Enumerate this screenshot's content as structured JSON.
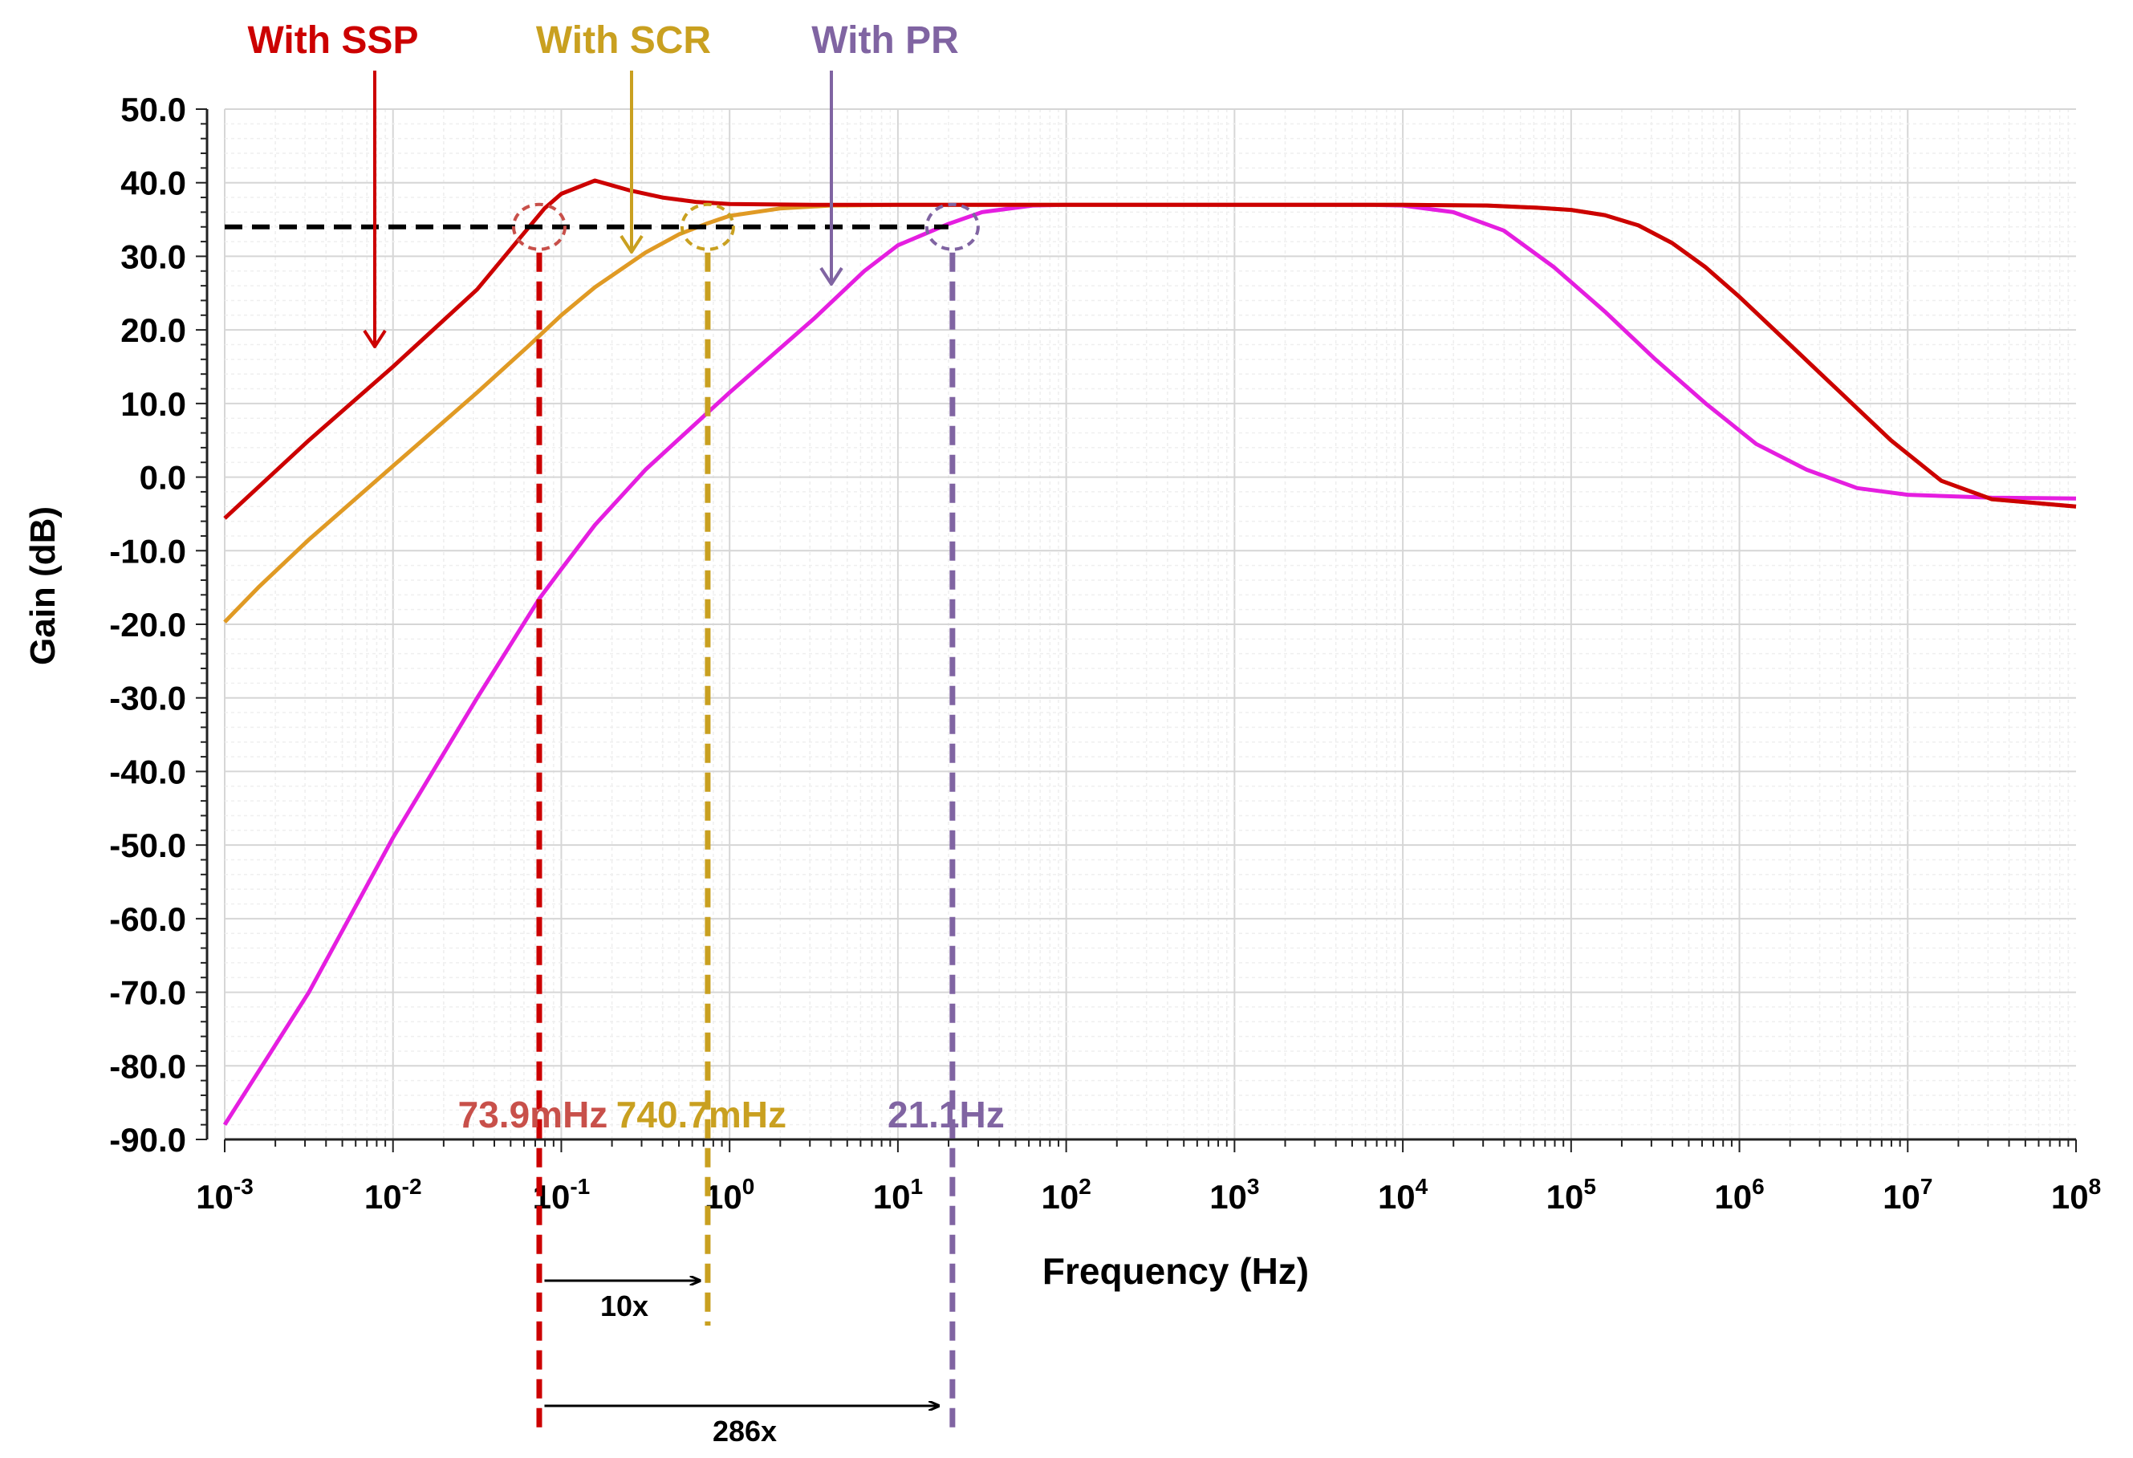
{
  "chart_data": {
    "type": "line",
    "title": "",
    "xlabel": "Frequency (Hz)",
    "ylabel": "Gain (dB)",
    "x_scale": "log10",
    "xlim": [
      0.001,
      100000000
    ],
    "ylim": [
      -90,
      50
    ],
    "grid": true,
    "x_tick_labels": [
      {
        "base": "10",
        "exp": "-3",
        "value": 0.001
      },
      {
        "base": "10",
        "exp": "-2",
        "value": 0.01
      },
      {
        "base": "10",
        "exp": "-1",
        "value": 0.1
      },
      {
        "base": "10",
        "exp": "0",
        "value": 1
      },
      {
        "base": "10",
        "exp": "1",
        "value": 10
      },
      {
        "base": "10",
        "exp": "2",
        "value": 100
      },
      {
        "base": "10",
        "exp": "3",
        "value": 1000
      },
      {
        "base": "10",
        "exp": "4",
        "value": 10000
      },
      {
        "base": "10",
        "exp": "5",
        "value": 100000
      },
      {
        "base": "10",
        "exp": "6",
        "value": 1000000
      },
      {
        "base": "10",
        "exp": "7",
        "value": 10000000
      },
      {
        "base": "10",
        "exp": "8",
        "value": 100000000
      }
    ],
    "y_tick_labels": [
      "50.0",
      "40.0",
      "30.0",
      "20.0",
      "10.0",
      "0.0",
      "-10.0",
      "-20.0",
      "-30.0",
      "-40.0",
      "-50.0",
      "-60.0",
      "-70.0",
      "-80.0",
      "-90.0"
    ],
    "series": [
      {
        "name": "With SSP",
        "color": "#cc0000",
        "points": [
          [
            -3,
            -5.6
          ],
          [
            -2.5,
            5
          ],
          [
            -2,
            15
          ],
          [
            -1.5,
            25.5
          ],
          [
            -1.3,
            31
          ],
          [
            -1.1,
            36.5
          ],
          [
            -1,
            38.5
          ],
          [
            -0.8,
            40.3
          ],
          [
            -0.6,
            39
          ],
          [
            -0.4,
            38
          ],
          [
            -0.2,
            37.4
          ],
          [
            0,
            37.1
          ],
          [
            0.5,
            37
          ],
          [
            1,
            37
          ],
          [
            2,
            37
          ],
          [
            3,
            37
          ],
          [
            4,
            37
          ],
          [
            4.5,
            36.9
          ],
          [
            4.8,
            36.6
          ],
          [
            5,
            36.3
          ],
          [
            5.2,
            35.6
          ],
          [
            5.4,
            34.2
          ],
          [
            5.6,
            31.8
          ],
          [
            5.8,
            28.5
          ],
          [
            6,
            24.5
          ],
          [
            6.3,
            18
          ],
          [
            6.6,
            11.5
          ],
          [
            6.9,
            5
          ],
          [
            7.2,
            -0.5
          ],
          [
            7.5,
            -3
          ],
          [
            8,
            -4
          ]
        ]
      },
      {
        "name": "With SCR",
        "color": "#e09a24",
        "points": [
          [
            -3,
            -19.7
          ],
          [
            -2.8,
            -15
          ],
          [
            -2.5,
            -8.5
          ],
          [
            -2,
            1.5
          ],
          [
            -1.5,
            11.5
          ],
          [
            -1.2,
            17.7
          ],
          [
            -1,
            22
          ],
          [
            -0.8,
            25.8
          ],
          [
            -0.5,
            30.5
          ],
          [
            -0.3,
            33
          ],
          [
            -0.13,
            34.5
          ],
          [
            0,
            35.5
          ],
          [
            0.3,
            36.5
          ],
          [
            0.6,
            36.9
          ],
          [
            1,
            37
          ],
          [
            2,
            37
          ],
          [
            3,
            37
          ],
          [
            4,
            37
          ],
          [
            4.5,
            36.9
          ],
          [
            4.8,
            36.6
          ],
          [
            5,
            36.3
          ],
          [
            5.2,
            35.6
          ],
          [
            5.4,
            34.2
          ],
          [
            5.6,
            31.8
          ],
          [
            5.8,
            28.5
          ],
          [
            6,
            24.5
          ],
          [
            6.3,
            18
          ],
          [
            6.6,
            11.5
          ],
          [
            6.9,
            5
          ],
          [
            7.2,
            -0.5
          ],
          [
            7.5,
            -3
          ],
          [
            8,
            -4
          ]
        ]
      },
      {
        "name": "With PR",
        "color": "#e51ee0",
        "points": [
          [
            -3,
            -88
          ],
          [
            -2.5,
            -70
          ],
          [
            -2,
            -49
          ],
          [
            -1.5,
            -30
          ],
          [
            -1.13,
            -16.5
          ],
          [
            -1,
            -12.5
          ],
          [
            -0.8,
            -6.5
          ],
          [
            -0.5,
            1
          ],
          [
            0,
            11.5
          ],
          [
            0.5,
            21.5
          ],
          [
            0.8,
            28
          ],
          [
            1,
            31.5
          ],
          [
            1.3,
            34.4
          ],
          [
            1.5,
            36
          ],
          [
            1.8,
            36.9
          ],
          [
            2,
            37
          ],
          [
            3,
            37
          ],
          [
            3.8,
            37
          ],
          [
            4,
            36.9
          ],
          [
            4.3,
            36
          ],
          [
            4.6,
            33.5
          ],
          [
            4.9,
            28.5
          ],
          [
            5.2,
            22.5
          ],
          [
            5.5,
            16
          ],
          [
            5.8,
            10
          ],
          [
            6.1,
            4.5
          ],
          [
            6.4,
            1
          ],
          [
            6.7,
            -1.5
          ],
          [
            7,
            -2.4
          ],
          [
            7.5,
            -2.8
          ],
          [
            8,
            -2.9
          ]
        ]
      }
    ],
    "reference_line": {
      "gain_db": 34,
      "x_from": -3,
      "x_to": 1.3,
      "color": "#000000"
    },
    "cutoff_markers": [
      {
        "label": "73.9mHz",
        "log_f": -1.131,
        "gain_db": 34,
        "color": "#c8504a",
        "line_color": "#cc0000"
      },
      {
        "label": "740.7mHz",
        "log_f": -0.13,
        "gain_db": 34,
        "color": "#c9a020",
        "line_color": "#c9a020"
      },
      {
        "label": "21.1Hz",
        "log_f": 1.324,
        "gain_db": 34,
        "color": "#8064a2",
        "line_color": "#8064a2"
      }
    ],
    "series_annotations": [
      {
        "text": "With SSP",
        "color": "#cc0000"
      },
      {
        "text": "With SCR",
        "color": "#c9a020"
      },
      {
        "text": "With PR",
        "color": "#8064a2"
      }
    ],
    "ratio_annotations": [
      {
        "text": "10x",
        "from_log_f": -1.1,
        "to_log_f": -0.18
      },
      {
        "text": "286x",
        "from_log_f": -1.1,
        "to_log_f": 1.24
      }
    ]
  }
}
